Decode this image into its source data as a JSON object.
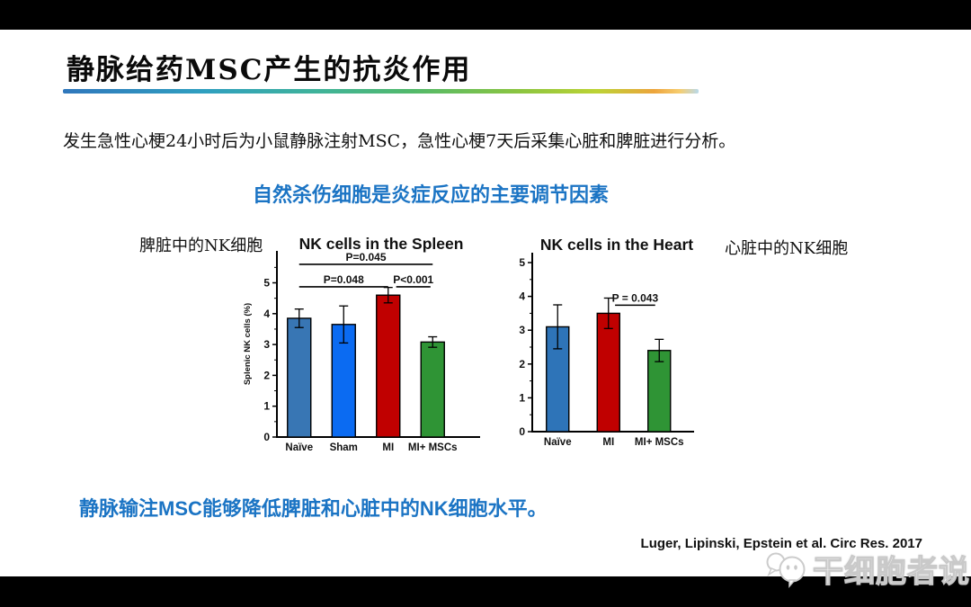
{
  "slide": {
    "title": "静脉给药MSC产生的抗炎作用",
    "intro": "发生急性心梗24小时后为小鼠静脉注射MSC，急性心梗7天后采集心脏和脾脏进行分析。",
    "subtitle": "自然杀伤细胞是炎症反应的主要调节因素",
    "left_chart_cjk_label": "脾脏中的NK细胞",
    "right_chart_cjk_label": "心脏中的NK细胞",
    "conclusion": "静脉输注MSC能够降低脾脏和心脏中的NK细胞水平。",
    "citation": "Luger, Lipinski, Epstein et al. Circ Res. 2017",
    "watermark_text": "干细胞者说",
    "watermark_icon": "speech-bubble-face-icon"
  },
  "colors": {
    "accent_blue_text": "#1b74c4",
    "rule_gradient_start": "#2f77bc",
    "rule_gradient_green": "#8cc540",
    "rule_gradient_orange": "#eda43c",
    "bar_naive_spleen": "#3876b4",
    "bar_sham": "#0b6bf2",
    "bar_mi": "#c00000",
    "bar_mi_mscs": "#2f9435",
    "bar_naive_heart": "#2e74b8",
    "frame_bars": "#000000"
  },
  "chart_data": [
    {
      "type": "bar",
      "title": "NK cells in the Spleen",
      "ylabel": "Splenic NK cells (%)",
      "xlabel": "",
      "categories": [
        "Naïve",
        "Sham",
        "MI",
        "MI+ MSCs"
      ],
      "values": [
        3.85,
        3.65,
        4.6,
        3.08
      ],
      "errors": [
        0.3,
        0.6,
        0.25,
        0.17
      ],
      "bar_colors": [
        "#3876b4",
        "#0b6bf2",
        "#c00000",
        "#2f9435"
      ],
      "ylim": [
        0,
        6
      ],
      "yticks": [
        0,
        1,
        2,
        3,
        4,
        5
      ],
      "grid": false,
      "significance": [
        {
          "x1": 0,
          "x2": 3,
          "y": 5.6,
          "label": "P=0.045"
        },
        {
          "x1": 0,
          "x2": 2,
          "y": 4.87,
          "label": "P=0.048"
        },
        {
          "x1": 2.18,
          "x2": 2.95,
          "y": 4.87,
          "label": "P<0.001"
        }
      ]
    },
    {
      "type": "bar",
      "title": "NK cells in the Heart",
      "ylabel": "",
      "xlabel": "",
      "categories": [
        "Naïve",
        "MI",
        "MI+ MSCs"
      ],
      "values": [
        3.1,
        3.5,
        2.4
      ],
      "errors": [
        0.65,
        0.45,
        0.33
      ],
      "bar_colors": [
        "#2e74b8",
        "#c00000",
        "#2f9435"
      ],
      "ylim": [
        0,
        5.3
      ],
      "yticks": [
        0,
        1,
        2,
        3,
        4,
        5
      ],
      "grid": false,
      "significance": [
        {
          "x1": 1.13,
          "x2": 1.92,
          "y": 3.74,
          "label": "P = 0.043"
        }
      ]
    }
  ]
}
